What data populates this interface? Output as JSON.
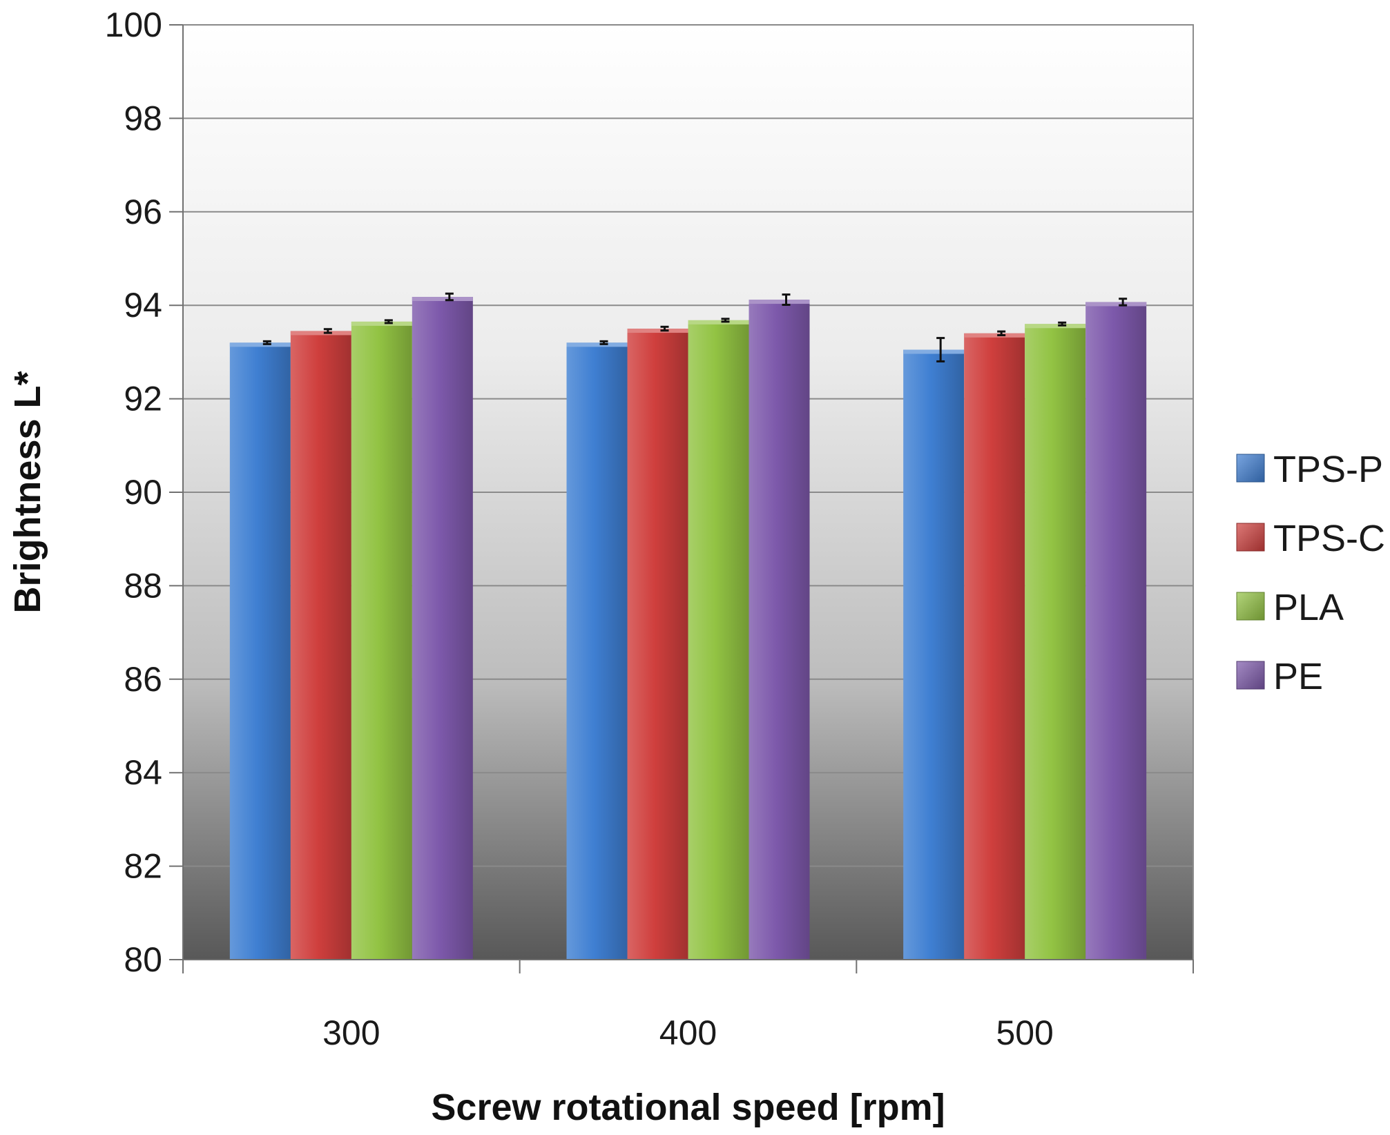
{
  "chart_data": {
    "type": "bar",
    "title": "",
    "xlabel": "Screw rotational speed [rpm]",
    "ylabel": "Brightness L*",
    "categories": [
      "300",
      "400",
      "500"
    ],
    "ylim": [
      80,
      100
    ],
    "yticks": [
      "80",
      "82",
      "84",
      "86",
      "88",
      "90",
      "92",
      "94",
      "96",
      "98",
      "100"
    ],
    "grid": "horizontal",
    "legend_position": "right",
    "series": [
      {
        "name": "TPS-P",
        "color": "#3f7fd2",
        "values": [
          93.2,
          93.2,
          93.05
        ],
        "errors": [
          0.03,
          0.03,
          0.25
        ]
      },
      {
        "name": "TPS-C",
        "color": "#cf3f3d",
        "values": [
          93.45,
          93.5,
          93.4
        ],
        "errors": [
          0.04,
          0.04,
          0.04
        ]
      },
      {
        "name": "PLA",
        "color": "#92c343",
        "values": [
          93.65,
          93.68,
          93.6
        ],
        "errors": [
          0.03,
          0.03,
          0.03
        ]
      },
      {
        "name": "PE",
        "color": "#7d59ab",
        "values": [
          94.18,
          94.12,
          94.07
        ],
        "errors": [
          0.07,
          0.11,
          0.07
        ]
      }
    ]
  }
}
